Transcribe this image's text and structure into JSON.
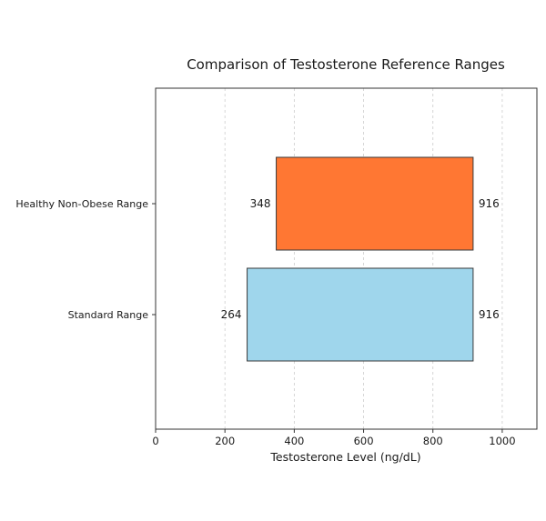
{
  "chart_data": {
    "type": "bar",
    "orientation": "horizontal-range",
    "title": "Comparison of Testosterone Reference Ranges",
    "xlabel": "Testosterone Level (ng/dL)",
    "ylabel": "",
    "xlim": [
      0,
      1100
    ],
    "xticks": [
      0,
      200,
      400,
      600,
      800,
      1000
    ],
    "grid": {
      "x": true,
      "y": false,
      "style": "dashed"
    },
    "ranges": [
      {
        "category": "Healthy Non-Obese Range",
        "low": 348,
        "high": 916,
        "color": "#ff7733"
      },
      {
        "category": "Standard Range",
        "low": 264,
        "high": 916,
        "color": "#9fd6ec"
      }
    ]
  }
}
